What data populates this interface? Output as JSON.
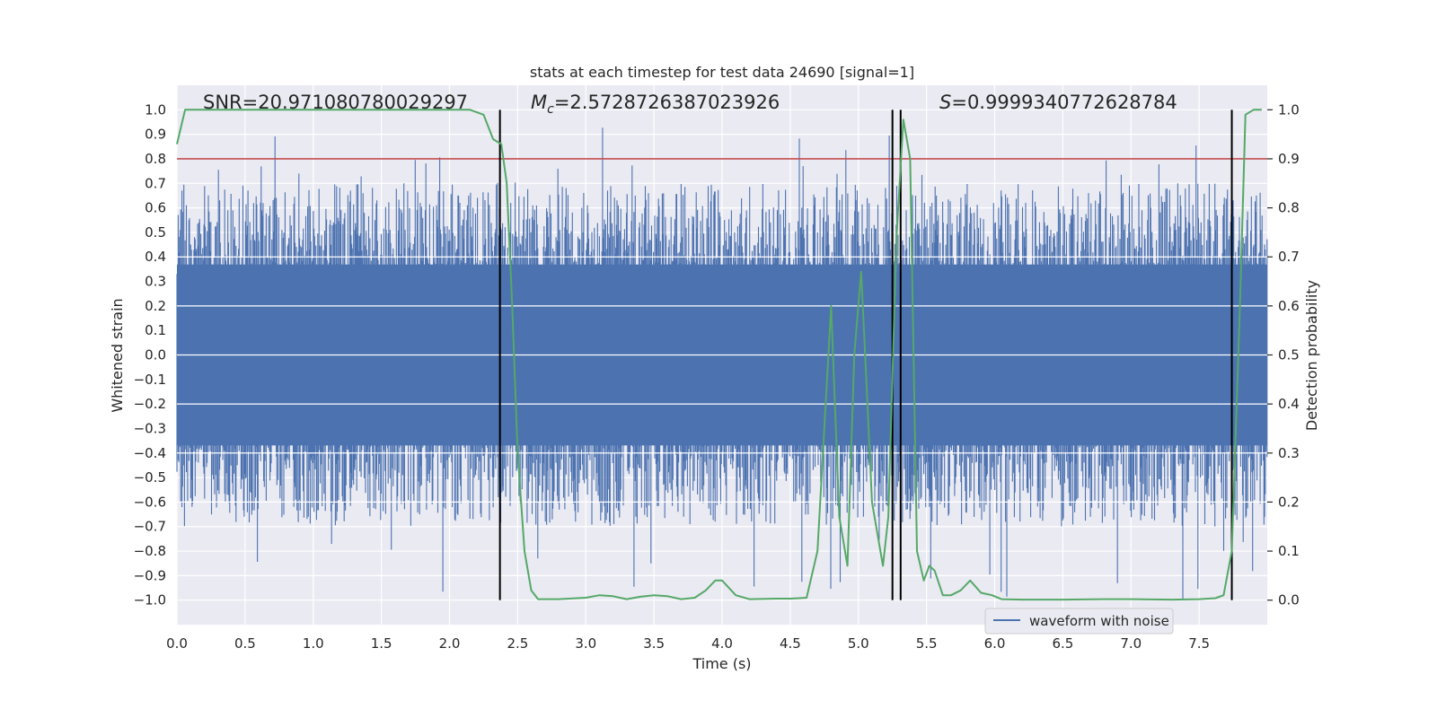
{
  "chart_data": {
    "type": "line",
    "title": "stats at each timestep for test data 24690 [signal=1]",
    "xlabel": "Time (s)",
    "ylabel": "Whitened strain",
    "y2label": "Detection probability",
    "xlim": [
      0.0,
      8.0
    ],
    "ylim": [
      -1.1,
      1.1
    ],
    "y2lim": [
      -0.05,
      1.05
    ],
    "xticks": [
      "0.0",
      "0.5",
      "1.0",
      "1.5",
      "2.0",
      "2.5",
      "3.0",
      "3.5",
      "4.0",
      "4.5",
      "5.0",
      "5.5",
      "6.0",
      "6.5",
      "7.0",
      "7.5"
    ],
    "yticks": [
      "1.0",
      "0.9",
      "0.8",
      "0.7",
      "0.6",
      "0.5",
      "0.4",
      "0.3",
      "0.2",
      "0.1",
      "0.0",
      "-0.1",
      "-0.2",
      "-0.3",
      "-0.4",
      "-0.5",
      "-0.6",
      "-0.7",
      "-0.8",
      "-0.9",
      "-1.0"
    ],
    "y2ticks": [
      "1.0",
      "0.9",
      "0.8",
      "0.7",
      "0.6",
      "0.5",
      "0.4",
      "0.3",
      "0.2",
      "0.1",
      "0.0"
    ],
    "annotations": {
      "snr_label": "SNR=20.971080780029297",
      "mc_symbol": "M",
      "mc_subscript": "c",
      "mc_value": "=2.5728726387023926",
      "s_symbol": "S",
      "s_value": "=0.9999340772628784"
    },
    "legend": {
      "label": "waveform with noise",
      "location": "lower-right"
    },
    "threshold": {
      "value": 0.9,
      "axis": "y2",
      "color": "#c44e52"
    },
    "vertical_lines": [
      2.37,
      5.25,
      5.31,
      7.74
    ],
    "series": [
      {
        "name": "waveform with noise",
        "axis": "y",
        "color": "#4c72b0",
        "kind": "dense-noise",
        "envelope_upper": 0.45,
        "envelope_lower": -0.45,
        "peak_max": 0.93,
        "trough_min": -1.0
      },
      {
        "name": "detection probability",
        "axis": "y2",
        "color": "#55a868",
        "x": [
          0.0,
          0.06,
          0.12,
          0.5,
          1.0,
          1.5,
          2.0,
          2.15,
          2.25,
          2.32,
          2.38,
          2.42,
          2.46,
          2.5,
          2.55,
          2.6,
          2.65,
          2.8,
          3.0,
          3.1,
          3.2,
          3.3,
          3.4,
          3.5,
          3.6,
          3.7,
          3.8,
          3.88,
          3.95,
          4.0,
          4.1,
          4.2,
          4.4,
          4.5,
          4.62,
          4.7,
          4.75,
          4.8,
          4.86,
          4.92,
          4.97,
          5.02,
          5.05,
          5.1,
          5.18,
          5.22,
          5.28,
          5.33,
          5.38,
          5.43,
          5.48,
          5.52,
          5.56,
          5.62,
          5.68,
          5.75,
          5.82,
          5.9,
          5.98,
          6.05,
          6.2,
          6.5,
          6.8,
          7.0,
          7.3,
          7.5,
          7.62,
          7.68,
          7.74,
          7.8,
          7.84,
          7.9,
          7.96
        ],
        "values": [
          0.93,
          1.0,
          1.0,
          1.0,
          1.0,
          1.0,
          1.0,
          1.0,
          0.99,
          0.94,
          0.93,
          0.85,
          0.6,
          0.3,
          0.1,
          0.02,
          0.002,
          0.002,
          0.005,
          0.01,
          0.008,
          0.002,
          0.007,
          0.01,
          0.008,
          0.002,
          0.005,
          0.02,
          0.04,
          0.04,
          0.01,
          0.002,
          0.003,
          0.003,
          0.005,
          0.1,
          0.35,
          0.6,
          0.17,
          0.07,
          0.5,
          0.67,
          0.5,
          0.2,
          0.07,
          0.17,
          0.74,
          0.98,
          0.9,
          0.1,
          0.04,
          0.07,
          0.06,
          0.01,
          0.01,
          0.02,
          0.04,
          0.015,
          0.01,
          0.002,
          0.001,
          0.001,
          0.002,
          0.002,
          0.001,
          0.002,
          0.004,
          0.01,
          0.1,
          0.6,
          0.99,
          1.0,
          1.0
        ]
      }
    ]
  }
}
